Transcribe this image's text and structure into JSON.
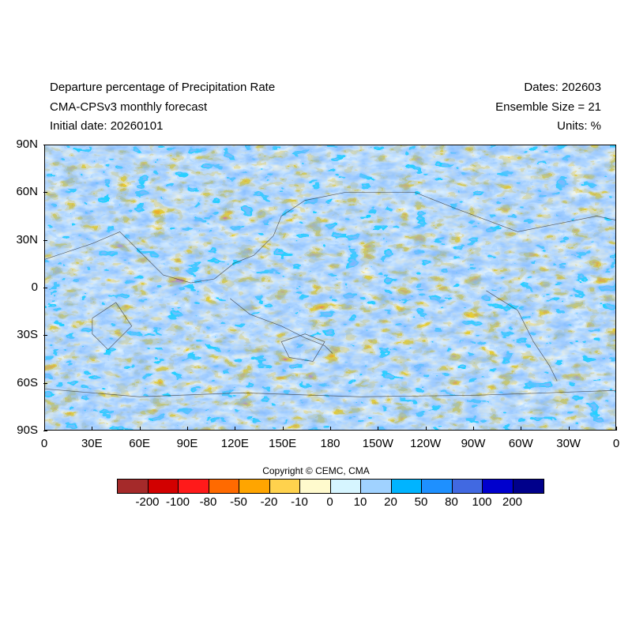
{
  "header": {
    "title_line1": "Departure percentage of Precipitation Rate",
    "title_line2": "CMA-CPSv3 monthly forecast",
    "title_line3": "Initial date: 20260101",
    "right_line1": "Dates: 202603",
    "right_line2": "Ensemble Size = 21",
    "right_line3": "Units: %"
  },
  "axes": {
    "lat_labels": [
      "90N",
      "60N",
      "30N",
      "0",
      "30S",
      "60S",
      "90S"
    ],
    "lon_labels": [
      "0",
      "30E",
      "60E",
      "90E",
      "120E",
      "150E",
      "180",
      "150W",
      "120W",
      "90W",
      "60W",
      "30W",
      "0"
    ]
  },
  "copyright": "Copyright © CEMC, CMA",
  "colorbar": {
    "colors": [
      "#a52a2a",
      "#d20000",
      "#ff1a1a",
      "#ff6a00",
      "#ffa500",
      "#ffd24d",
      "#fffacd",
      "#d6f5ff",
      "#a0d2ff",
      "#00b4ff",
      "#1e90ff",
      "#4169e1",
      "#0000cd",
      "#00008b"
    ],
    "labels": [
      "-200",
      "-100",
      "-80",
      "-50",
      "-20",
      "-10",
      "0",
      "10",
      "20",
      "50",
      "80",
      "100",
      "200"
    ]
  }
}
